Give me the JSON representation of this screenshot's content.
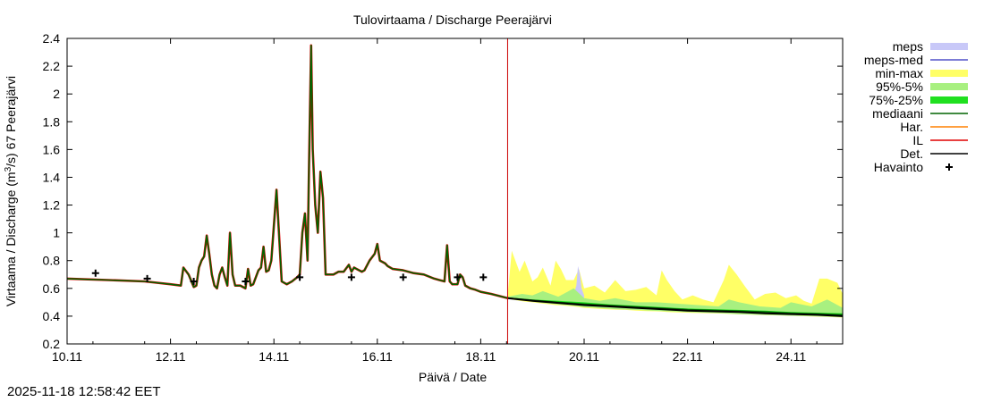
{
  "chart_data": {
    "type": "line",
    "title": "Tulovirtaama / Discharge  Peerajärvi",
    "ylabel_pre": "Virtaama / Discharge (m",
    "ylabel_sup": "3",
    "ylabel_post": "/s)  67  Peerajärvi",
    "xlabel": "Päivä / Date",
    "xlim": [
      10.0,
      25.0
    ],
    "ylim": [
      0.2,
      2.4
    ],
    "x_ticks": [
      {
        "x": 10,
        "label": "10.11"
      },
      {
        "x": 12,
        "label": "12.11"
      },
      {
        "x": 14,
        "label": "14.11"
      },
      {
        "x": 16,
        "label": "16.11"
      },
      {
        "x": 18,
        "label": "18.11"
      },
      {
        "x": 20,
        "label": "20.11"
      },
      {
        "x": 22,
        "label": "22.11"
      },
      {
        "x": 24,
        "label": "24.11"
      }
    ],
    "y_ticks": [
      {
        "y": 0.2,
        "label": "0.2"
      },
      {
        "y": 0.4,
        "label": "0.4"
      },
      {
        "y": 0.6,
        "label": "0.6"
      },
      {
        "y": 0.8,
        "label": "0.8"
      },
      {
        "y": 1.0,
        "label": "1"
      },
      {
        "y": 1.2,
        "label": "1.2"
      },
      {
        "y": 1.4,
        "label": "1.4"
      },
      {
        "y": 1.6,
        "label": "1.6"
      },
      {
        "y": 1.8,
        "label": "1.8"
      },
      {
        "y": 2.0,
        "label": "2"
      },
      {
        "y": 2.2,
        "label": "2.2"
      },
      {
        "y": 2.4,
        "label": "2.4"
      }
    ],
    "forecast_start": 18.52,
    "colors": {
      "meps": "#c8c8f8",
      "meps_med": "#5050c8",
      "minmax": "#ffff66",
      "p95_5": "#a8f080",
      "p75_25": "#20e020",
      "median": "#006400",
      "har": "#ff8000",
      "il": "#e00000",
      "det": "#000000",
      "havainto": "#000000",
      "vline": "#cc0000"
    },
    "legend": [
      {
        "label": "meps",
        "key": "meps",
        "style": "band"
      },
      {
        "label": "meps-med",
        "key": "meps_med",
        "style": "line"
      },
      {
        "label": "min-max",
        "key": "minmax",
        "style": "band"
      },
      {
        "label": "95%-5%",
        "key": "p95_5",
        "style": "band"
      },
      {
        "label": "75%-25%",
        "key": "p75_25",
        "style": "band"
      },
      {
        "label": "mediaani",
        "key": "median",
        "style": "line"
      },
      {
        "label": "Har.",
        "key": "har",
        "style": "line"
      },
      {
        "label": "IL",
        "key": "il",
        "style": "line"
      },
      {
        "label": "Det.",
        "key": "det",
        "style": "line"
      },
      {
        "label": "Havainto",
        "key": "havainto",
        "style": "marker"
      }
    ],
    "series": {
      "history": [
        [
          10.0,
          0.67
        ],
        [
          10.8,
          0.66
        ],
        [
          11.5,
          0.65
        ],
        [
          12.0,
          0.63
        ],
        [
          12.2,
          0.62
        ],
        [
          12.25,
          0.75
        ],
        [
          12.35,
          0.7
        ],
        [
          12.45,
          0.61
        ],
        [
          12.5,
          0.62
        ],
        [
          12.55,
          0.75
        ],
        [
          12.6,
          0.8
        ],
        [
          12.65,
          0.83
        ],
        [
          12.7,
          0.98
        ],
        [
          12.75,
          0.85
        ],
        [
          12.8,
          0.7
        ],
        [
          12.85,
          0.62
        ],
        [
          12.9,
          0.6
        ],
        [
          12.95,
          0.7
        ],
        [
          13.0,
          0.75
        ],
        [
          13.05,
          0.68
        ],
        [
          13.1,
          0.62
        ],
        [
          13.15,
          1.0
        ],
        [
          13.2,
          0.7
        ],
        [
          13.25,
          0.62
        ],
        [
          13.35,
          0.62
        ],
        [
          13.45,
          0.6
        ],
        [
          13.5,
          0.74
        ],
        [
          13.55,
          0.62
        ],
        [
          13.6,
          0.63
        ],
        [
          13.7,
          0.73
        ],
        [
          13.75,
          0.75
        ],
        [
          13.8,
          0.9
        ],
        [
          13.85,
          0.72
        ],
        [
          13.9,
          0.73
        ],
        [
          13.95,
          0.8
        ],
        [
          14.05,
          1.31
        ],
        [
          14.15,
          0.65
        ],
        [
          14.25,
          0.63
        ],
        [
          14.35,
          0.65
        ],
        [
          14.45,
          0.68
        ],
        [
          14.5,
          0.7
        ],
        [
          14.55,
          1.0
        ],
        [
          14.6,
          1.14
        ],
        [
          14.65,
          0.8
        ],
        [
          14.68,
          1.5
        ],
        [
          14.72,
          2.35
        ],
        [
          14.75,
          1.6
        ],
        [
          14.8,
          1.2
        ],
        [
          14.85,
          1.0
        ],
        [
          14.9,
          1.44
        ],
        [
          14.95,
          1.25
        ],
        [
          15.0,
          0.7
        ],
        [
          15.15,
          0.7
        ],
        [
          15.25,
          0.72
        ],
        [
          15.35,
          0.72
        ],
        [
          15.45,
          0.77
        ],
        [
          15.5,
          0.72
        ],
        [
          15.55,
          0.75
        ],
        [
          15.6,
          0.74
        ],
        [
          15.7,
          0.72
        ],
        [
          15.75,
          0.73
        ],
        [
          15.85,
          0.8
        ],
        [
          15.95,
          0.85
        ],
        [
          16.0,
          0.92
        ],
        [
          16.05,
          0.8
        ],
        [
          16.15,
          0.78
        ],
        [
          16.2,
          0.76
        ],
        [
          16.3,
          0.74
        ],
        [
          16.5,
          0.73
        ],
        [
          16.7,
          0.71
        ],
        [
          16.9,
          0.7
        ],
        [
          17.1,
          0.67
        ],
        [
          17.2,
          0.66
        ],
        [
          17.3,
          0.65
        ],
        [
          17.35,
          0.91
        ],
        [
          17.4,
          0.65
        ],
        [
          17.45,
          0.63
        ],
        [
          17.55,
          0.63
        ],
        [
          17.6,
          0.7
        ],
        [
          17.65,
          0.68
        ],
        [
          17.7,
          0.62
        ],
        [
          17.8,
          0.6
        ],
        [
          17.9,
          0.59
        ],
        [
          18.0,
          0.575
        ],
        [
          18.2,
          0.56
        ],
        [
          18.52,
          0.53
        ]
      ],
      "det": [
        [
          18.52,
          0.53
        ],
        [
          19.0,
          0.51
        ],
        [
          19.5,
          0.495
        ],
        [
          20.0,
          0.48
        ],
        [
          20.5,
          0.47
        ],
        [
          21.0,
          0.46
        ],
        [
          21.5,
          0.45
        ],
        [
          22.0,
          0.44
        ],
        [
          22.5,
          0.435
        ],
        [
          23.0,
          0.43
        ],
        [
          23.5,
          0.42
        ],
        [
          24.0,
          0.415
        ],
        [
          24.5,
          0.41
        ],
        [
          25.0,
          0.4
        ]
      ],
      "minmax": {
        "x": [
          18.52,
          18.6,
          18.75,
          18.85,
          19.0,
          19.1,
          19.2,
          19.35,
          19.45,
          19.55,
          19.65,
          19.8,
          19.9,
          20.0,
          20.2,
          20.4,
          20.6,
          20.8,
          21.0,
          21.2,
          21.4,
          21.5,
          21.6,
          21.75,
          21.9,
          22.1,
          22.3,
          22.5,
          22.7,
          22.8,
          22.95,
          23.1,
          23.3,
          23.5,
          23.7,
          23.9,
          24.1,
          24.25,
          24.4,
          24.55,
          24.7,
          24.9,
          25.0
        ],
        "hi": [
          0.55,
          0.87,
          0.72,
          0.8,
          0.65,
          0.68,
          0.75,
          0.62,
          0.8,
          0.74,
          0.66,
          0.66,
          0.74,
          0.6,
          0.62,
          0.57,
          0.66,
          0.58,
          0.59,
          0.61,
          0.55,
          0.73,
          0.66,
          0.58,
          0.52,
          0.55,
          0.52,
          0.5,
          0.66,
          0.77,
          0.7,
          0.62,
          0.52,
          0.56,
          0.57,
          0.53,
          0.55,
          0.51,
          0.49,
          0.67,
          0.67,
          0.64,
          0.56
        ],
        "lo": [
          0.53,
          0.52,
          0.51,
          0.505,
          0.5,
          0.495,
          0.49,
          0.485,
          0.48,
          0.478,
          0.475,
          0.47,
          0.465,
          0.46,
          0.455,
          0.45,
          0.447,
          0.445,
          0.44,
          0.437,
          0.435,
          0.433,
          0.43,
          0.428,
          0.426,
          0.424,
          0.422,
          0.42,
          0.418,
          0.416,
          0.414,
          0.412,
          0.41,
          0.408,
          0.406,
          0.404,
          0.402,
          0.4,
          0.398,
          0.396,
          0.394,
          0.392,
          0.39
        ]
      },
      "p95_5": {
        "x": [
          18.52,
          18.8,
          19.0,
          19.2,
          19.5,
          19.8,
          20.0,
          20.3,
          20.6,
          21.0,
          21.4,
          21.8,
          22.2,
          22.6,
          22.8,
          23.0,
          23.4,
          23.8,
          24.0,
          24.4,
          24.7,
          25.0
        ],
        "hi": [
          0.54,
          0.56,
          0.55,
          0.58,
          0.54,
          0.6,
          0.53,
          0.51,
          0.53,
          0.5,
          0.5,
          0.49,
          0.48,
          0.47,
          0.52,
          0.5,
          0.47,
          0.46,
          0.5,
          0.47,
          0.52,
          0.46
        ],
        "lo": [
          0.53,
          0.515,
          0.505,
          0.495,
          0.485,
          0.475,
          0.465,
          0.458,
          0.45,
          0.445,
          0.438,
          0.432,
          0.427,
          0.422,
          0.418,
          0.414,
          0.41,
          0.406,
          0.403,
          0.4,
          0.396,
          0.393
        ]
      },
      "p75_25": {
        "x": [
          18.52,
          19.0,
          19.5,
          20.0,
          20.5,
          21.0,
          21.5,
          22.0,
          22.5,
          23.0,
          23.5,
          24.0,
          24.5,
          25.0
        ],
        "hi": [
          0.535,
          0.52,
          0.51,
          0.5,
          0.485,
          0.475,
          0.465,
          0.455,
          0.45,
          0.445,
          0.44,
          0.43,
          0.425,
          0.42
        ],
        "lo": [
          0.53,
          0.51,
          0.495,
          0.48,
          0.47,
          0.46,
          0.45,
          0.44,
          0.435,
          0.43,
          0.42,
          0.415,
          0.41,
          0.4
        ]
      },
      "meps": {
        "x": [
          19.8,
          19.85,
          19.88,
          19.92,
          19.95,
          20.0
        ],
        "hi": [
          0.56,
          0.62,
          0.76,
          0.7,
          0.6,
          0.55
        ],
        "lo": [
          0.5,
          0.5,
          0.5,
          0.5,
          0.5,
          0.5
        ]
      },
      "median": [
        [
          18.52,
          0.53
        ],
        [
          19.0,
          0.515
        ],
        [
          19.5,
          0.5
        ],
        [
          20.0,
          0.487
        ],
        [
          20.5,
          0.477
        ],
        [
          21.0,
          0.467
        ],
        [
          21.5,
          0.457
        ],
        [
          22.0,
          0.447
        ],
        [
          22.5,
          0.442
        ],
        [
          23.0,
          0.437
        ],
        [
          23.5,
          0.43
        ],
        [
          24.0,
          0.422
        ],
        [
          24.5,
          0.417
        ],
        [
          25.0,
          0.41
        ]
      ],
      "havainto": [
        [
          10.55,
          0.71
        ],
        [
          11.55,
          0.67
        ],
        [
          12.45,
          0.65
        ],
        [
          13.45,
          0.65
        ],
        [
          14.5,
          0.68
        ],
        [
          15.5,
          0.68
        ],
        [
          16.5,
          0.68
        ],
        [
          17.55,
          0.68
        ],
        [
          18.05,
          0.68
        ]
      ]
    }
  },
  "timestamp": "2025-11-18 12:58:42 EET"
}
